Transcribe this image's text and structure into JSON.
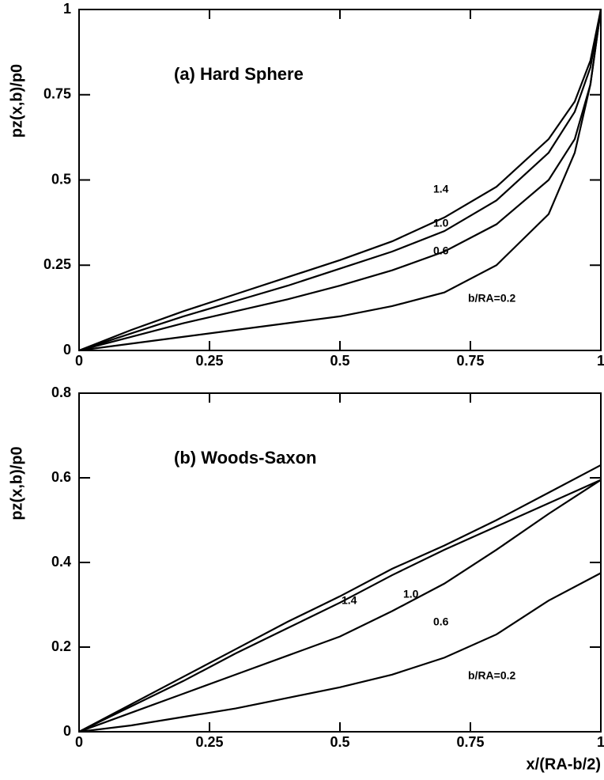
{
  "chart_data": [
    {
      "type": "line",
      "annotation": "(a) Hard Sphere",
      "ylabel": "pz(x,b)/p0",
      "x": [
        0,
        0.1,
        0.2,
        0.3,
        0.4,
        0.5,
        0.6,
        0.7,
        0.8,
        0.9,
        0.95,
        0.98,
        1
      ],
      "series": [
        {
          "name": "1.4",
          "color": "#000000",
          "values": [
            0,
            0.06,
            0.115,
            0.165,
            0.215,
            0.265,
            0.32,
            0.39,
            0.48,
            0.62,
            0.73,
            0.85,
            1
          ]
        },
        {
          "name": "1.0",
          "color": "#000000",
          "values": [
            0,
            0.05,
            0.1,
            0.145,
            0.19,
            0.24,
            0.29,
            0.35,
            0.44,
            0.58,
            0.7,
            0.83,
            1
          ]
        },
        {
          "name": "0.6",
          "color": "#000000",
          "values": [
            0,
            0.04,
            0.08,
            0.115,
            0.15,
            0.19,
            0.235,
            0.29,
            0.37,
            0.5,
            0.62,
            0.78,
            1
          ]
        },
        {
          "name": "b/RA=0.2",
          "color": "#000000",
          "values": [
            0,
            0.02,
            0.04,
            0.06,
            0.08,
            0.1,
            0.13,
            0.17,
            0.25,
            0.4,
            0.58,
            0.78,
            1
          ]
        }
      ],
      "xlim": [
        0,
        1
      ],
      "xticks": [
        0,
        0.25,
        0.5,
        0.75,
        1
      ],
      "ylim": [
        0,
        1
      ],
      "yticks": [
        0,
        0.25,
        0.5,
        0.75,
        1
      ]
    },
    {
      "type": "line",
      "annotation": "(b) Woods-Saxon",
      "ylabel": "pz(x,b)/p0",
      "xlabel": "x/(RA-b/2)",
      "x": [
        0,
        0.1,
        0.2,
        0.3,
        0.4,
        0.5,
        0.6,
        0.7,
        0.8,
        0.9,
        1
      ],
      "series": [
        {
          "name": "1.4",
          "color": "#000000",
          "values": [
            0,
            0.065,
            0.13,
            0.195,
            0.26,
            0.32,
            0.385,
            0.44,
            0.5,
            0.565,
            0.63
          ]
        },
        {
          "name": "1.0",
          "color": "#000000",
          "values": [
            0,
            0.06,
            0.12,
            0.185,
            0.245,
            0.305,
            0.37,
            0.43,
            0.485,
            0.54,
            0.595
          ]
        },
        {
          "name": "0.6",
          "color": "#000000",
          "values": [
            0,
            0.045,
            0.09,
            0.135,
            0.18,
            0.225,
            0.285,
            0.35,
            0.43,
            0.515,
            0.595
          ]
        },
        {
          "name": "b/RA=0.2",
          "color": "#000000",
          "values": [
            0,
            0.015,
            0.035,
            0.055,
            0.08,
            0.105,
            0.135,
            0.175,
            0.23,
            0.31,
            0.375
          ]
        }
      ],
      "xlim": [
        0,
        1
      ],
      "xticks": [
        0,
        0.25,
        0.5,
        0.75,
        1
      ],
      "ylim": [
        0,
        0.8
      ],
      "yticks": [
        0,
        0.2,
        0.4,
        0.6,
        0.8
      ]
    }
  ]
}
